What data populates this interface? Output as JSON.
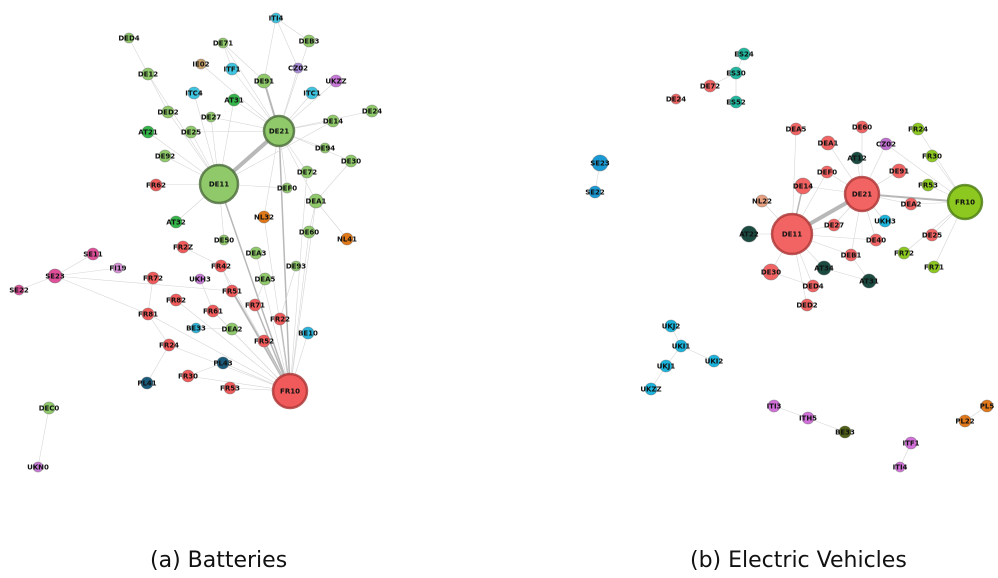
{
  "colors": {
    "DE": "#8fc96a",
    "FR": "#f05a5a",
    "IT": "#3dc4e0",
    "AT": "#33b54a",
    "CZ": "#a98bdc",
    "UK": "#c878d8",
    "IE": "#c8a06a",
    "NL": "#e07818",
    "SE": "#e0509a",
    "FI": "#d890d8",
    "BE": "#2ab4dc",
    "PL": "#1a5a7a",
    "ES": "#22b8a0",
    "b_DE": "#f26464",
    "b_AT": "#1a4a40",
    "b_FR": "#8cc820",
    "b_SE": "#1a9ad4",
    "b_UK": "#1ab4dc",
    "b_IT": "#d070d8",
    "b_PL": "#e0781a",
    "b_BE": "#506018",
    "b_NL": "#e8a080",
    "b_CZ": "#c070d0",
    "edge": "#bbbbbb"
  },
  "captions": {
    "a": "(a) Batteries",
    "b": "(b) Electric Vehicles"
  },
  "graph_a": {
    "nodes": [
      {
        "id": "ITI4",
        "c": "IT"
      },
      {
        "id": "DED4",
        "c": "DE"
      },
      {
        "id": "DE71",
        "c": "DE"
      },
      {
        "id": "DEB3",
        "c": "DE"
      },
      {
        "id": "DE12",
        "c": "DE"
      },
      {
        "id": "IE02",
        "c": "IE"
      },
      {
        "id": "ITF1",
        "c": "IT"
      },
      {
        "id": "DE91",
        "c": "DE"
      },
      {
        "id": "CZ02",
        "c": "CZ"
      },
      {
        "id": "UKZZ",
        "c": "UK"
      },
      {
        "id": "ITC4",
        "c": "IT"
      },
      {
        "id": "AT31",
        "c": "AT"
      },
      {
        "id": "ITC1",
        "c": "IT"
      },
      {
        "id": "DE24",
        "c": "DE"
      },
      {
        "id": "DED2",
        "c": "DE"
      },
      {
        "id": "DE27",
        "c": "DE"
      },
      {
        "id": "DE14",
        "c": "DE"
      },
      {
        "id": "AT21",
        "c": "AT"
      },
      {
        "id": "DE25",
        "c": "DE"
      },
      {
        "id": "DE21",
        "c": "DE"
      },
      {
        "id": "DE92",
        "c": "DE"
      },
      {
        "id": "DE94",
        "c": "DE"
      },
      {
        "id": "DE30",
        "c": "DE"
      },
      {
        "id": "DE72",
        "c": "DE"
      },
      {
        "id": "FR62",
        "c": "FR"
      },
      {
        "id": "DE11",
        "c": "DE"
      },
      {
        "id": "DEF0",
        "c": "DE"
      },
      {
        "id": "DEA1",
        "c": "DE"
      },
      {
        "id": "AT32",
        "c": "AT"
      },
      {
        "id": "NL32",
        "c": "NL"
      },
      {
        "id": "DE60",
        "c": "DE"
      },
      {
        "id": "NL41",
        "c": "NL"
      },
      {
        "id": "DE50",
        "c": "DE"
      },
      {
        "id": "FR2Z",
        "c": "FR"
      },
      {
        "id": "SE11",
        "c": "SE"
      },
      {
        "id": "DEA3",
        "c": "DE"
      },
      {
        "id": "FI19",
        "c": "FI"
      },
      {
        "id": "FR72",
        "c": "FR"
      },
      {
        "id": "UKH3",
        "c": "UK"
      },
      {
        "id": "FR42",
        "c": "FR"
      },
      {
        "id": "DE93",
        "c": "DE"
      },
      {
        "id": "SE23",
        "c": "SE"
      },
      {
        "id": "DEA5",
        "c": "DE"
      },
      {
        "id": "FR51",
        "c": "FR"
      },
      {
        "id": "SE22",
        "c": "SE"
      },
      {
        "id": "FR82",
        "c": "FR"
      },
      {
        "id": "FR71",
        "c": "FR"
      },
      {
        "id": "FR81",
        "c": "FR"
      },
      {
        "id": "FR61",
        "c": "FR"
      },
      {
        "id": "FR22",
        "c": "FR"
      },
      {
        "id": "BE33",
        "c": "BE"
      },
      {
        "id": "DEA2",
        "c": "DE"
      },
      {
        "id": "BE10",
        "c": "BE"
      },
      {
        "id": "FR52",
        "c": "FR"
      },
      {
        "id": "FR24",
        "c": "FR"
      },
      {
        "id": "PL43",
        "c": "PL"
      },
      {
        "id": "FR30",
        "c": "FR"
      },
      {
        "id": "PL41",
        "c": "PL"
      },
      {
        "id": "FR10",
        "c": "FR"
      },
      {
        "id": "FR53",
        "c": "FR"
      },
      {
        "id": "DEC0",
        "c": "DE"
      },
      {
        "id": "UKN0",
        "c": "UK"
      }
    ]
  },
  "graph_b": {
    "nodes": [
      {
        "id": "ES24",
        "c": "b_ES"
      },
      {
        "id": "ES30",
        "c": "b_ES"
      },
      {
        "id": "DE72",
        "c": "b_DE"
      },
      {
        "id": "DE24",
        "c": "b_DE"
      },
      {
        "id": "ES52",
        "c": "b_ES"
      },
      {
        "id": "DEA5",
        "c": "b_DE"
      },
      {
        "id": "DE60",
        "c": "b_DE"
      },
      {
        "id": "FR24",
        "c": "b_FR"
      },
      {
        "id": "DEA1",
        "c": "b_DE"
      },
      {
        "id": "AT12",
        "c": "b_AT"
      },
      {
        "id": "CZ02",
        "c": "b_CZ"
      },
      {
        "id": "FR30",
        "c": "b_FR"
      },
      {
        "id": "SE23",
        "c": "b_SE"
      },
      {
        "id": "DEF0",
        "c": "b_DE"
      },
      {
        "id": "DE91",
        "c": "b_DE"
      },
      {
        "id": "DE14",
        "c": "b_DE"
      },
      {
        "id": "DE21",
        "c": "b_DE"
      },
      {
        "id": "FR53",
        "c": "b_FR"
      },
      {
        "id": "SE22",
        "c": "b_SE"
      },
      {
        "id": "FR10",
        "c": "b_FR"
      },
      {
        "id": "NL22",
        "c": "b_NL"
      },
      {
        "id": "DEA2",
        "c": "b_DE"
      },
      {
        "id": "UKH3",
        "c": "b_UK"
      },
      {
        "id": "DE27",
        "c": "b_DE"
      },
      {
        "id": "AT22",
        "c": "b_AT"
      },
      {
        "id": "DE11",
        "c": "b_DE"
      },
      {
        "id": "DE25",
        "c": "b_DE"
      },
      {
        "id": "DE40",
        "c": "b_DE"
      },
      {
        "id": "FR72",
        "c": "b_FR"
      },
      {
        "id": "DEB1",
        "c": "b_DE"
      },
      {
        "id": "FR71",
        "c": "b_FR"
      },
      {
        "id": "DE30",
        "c": "b_DE"
      },
      {
        "id": "AT34",
        "c": "b_AT"
      },
      {
        "id": "AT31",
        "c": "b_AT"
      },
      {
        "id": "DED4",
        "c": "b_DE"
      },
      {
        "id": "DED2",
        "c": "b_DE"
      },
      {
        "id": "UKJ2",
        "c": "b_UK"
      },
      {
        "id": "UKI1",
        "c": "b_UK"
      },
      {
        "id": "UKI2",
        "c": "b_UK"
      },
      {
        "id": "UKJ1",
        "c": "b_UK"
      },
      {
        "id": "UKZZ",
        "c": "b_UK"
      },
      {
        "id": "ITI3",
        "c": "b_IT"
      },
      {
        "id": "ITH5",
        "c": "b_IT"
      },
      {
        "id": "PL5",
        "c": "b_PL"
      },
      {
        "id": "BE33",
        "c": "b_BE"
      },
      {
        "id": "PL22",
        "c": "b_PL"
      },
      {
        "id": "ITF1",
        "c": "b_IT"
      },
      {
        "id": "ITI4",
        "c": "b_IT"
      }
    ]
  }
}
